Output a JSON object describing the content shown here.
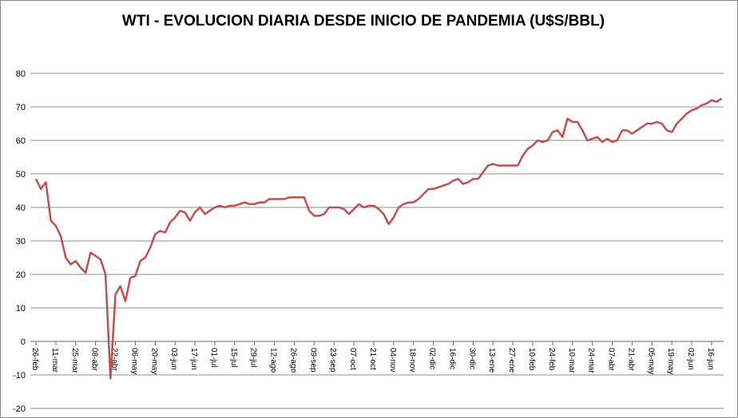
{
  "chart_data": {
    "type": "line",
    "title": "WTI - EVOLUCION DIARIA DESDE INICIO DE PANDEMIA (U$S/BBL)",
    "categories": [
      "26-feb",
      null,
      null,
      null,
      "11-mar",
      null,
      null,
      null,
      "25-mar",
      null,
      null,
      null,
      "08-abr",
      null,
      null,
      null,
      "22-abr",
      null,
      null,
      null,
      "06-may",
      null,
      null,
      null,
      "20-may",
      null,
      null,
      null,
      "03-jun",
      null,
      null,
      null,
      "17-jun",
      null,
      null,
      null,
      "01-jul",
      null,
      null,
      null,
      "15-jul",
      null,
      null,
      null,
      "29-jul",
      null,
      null,
      null,
      "12-ago",
      null,
      null,
      null,
      "26-ago",
      null,
      null,
      null,
      "09-sep",
      null,
      null,
      null,
      "23-sep",
      null,
      null,
      null,
      "07-oct",
      null,
      null,
      null,
      "21-oct",
      null,
      null,
      null,
      "04-nov",
      null,
      null,
      null,
      "18-nov",
      null,
      null,
      null,
      "02-dic",
      null,
      null,
      null,
      "16-dic",
      null,
      null,
      null,
      "30-dic",
      null,
      null,
      null,
      "13-ene",
      null,
      null,
      null,
      "27-ene",
      null,
      null,
      null,
      "10-feb",
      null,
      null,
      null,
      "24-feb",
      null,
      null,
      null,
      "10-mar",
      null,
      null,
      null,
      "24-mar",
      null,
      null,
      null,
      "07-abr",
      null,
      null,
      null,
      "21-abr",
      null,
      null,
      null,
      "05-may",
      null,
      null,
      null,
      "19-may",
      null,
      null,
      null,
      "02-jun",
      null,
      null,
      null,
      "16-jun",
      null,
      null
    ],
    "series": [
      {
        "name": "WTI",
        "color": "#c0504d",
        "values": [
          48.5,
          45.5,
          47.5,
          36,
          34.5,
          31.5,
          25,
          23,
          24,
          22,
          20.5,
          26.5,
          25.5,
          24.5,
          20,
          -11,
          14,
          16.5,
          12,
          19,
          19.5,
          24,
          25,
          28,
          32,
          33,
          32.5,
          35.5,
          37,
          39,
          38.5,
          36,
          38.5,
          40,
          38,
          39,
          40,
          40.5,
          40,
          40.5,
          40.5,
          41,
          41.5,
          41,
          41,
          41.5,
          41.5,
          42.5,
          42.5,
          42.5,
          42.5,
          43,
          43,
          43,
          43,
          39,
          37.5,
          37.5,
          38,
          40,
          40,
          40,
          39.5,
          38,
          39.5,
          41,
          40,
          40.5,
          40.5,
          39.5,
          38,
          35,
          37,
          40,
          41,
          41.5,
          41.5,
          42.5,
          44,
          45.5,
          45.5,
          46,
          46.5,
          47,
          48,
          48.5,
          47,
          47.5,
          48.5,
          48.5,
          50.5,
          52.5,
          53,
          52.5,
          52.5,
          52.5,
          52.5,
          52.5,
          55.5,
          57.5,
          58.5,
          60,
          59.5,
          60,
          62.5,
          63,
          61,
          66.5,
          65.5,
          65.5,
          63,
          60,
          60.5,
          61,
          59.5,
          60.5,
          59.5,
          60,
          63,
          63,
          62,
          63,
          64,
          65,
          65,
          65.5,
          65,
          63,
          62.5,
          65,
          66.5,
          68,
          69,
          69.5,
          70.5,
          71,
          72,
          71.5,
          72.5
        ]
      }
    ],
    "ylim": [
      -20,
      80
    ],
    "yticks": [
      -20,
      -10,
      0,
      10,
      20,
      30,
      40,
      50,
      60,
      70,
      80
    ],
    "grid": true
  }
}
